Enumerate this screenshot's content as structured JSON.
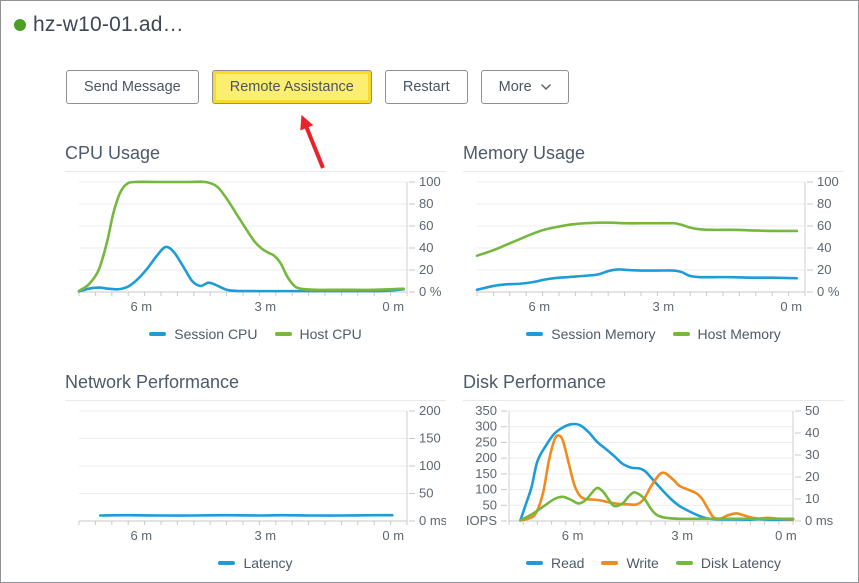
{
  "window": {
    "title": "hz-w10-01.ad…"
  },
  "status": {
    "color": "#4c9e27"
  },
  "toolbar": {
    "send_message_label": "Send Message",
    "remote_assistance_label": "Remote Assistance",
    "restart_label": "Restart",
    "more_label": "More",
    "highlight_color": "#fbee71",
    "annotation_arrow_color": "#e8232a"
  },
  "chart_data": [
    {
      "type": "line",
      "title": "CPU Usage",
      "x_ticks": [
        {
          "label": "6 m",
          "pos": 0.19
        },
        {
          "label": "3 m",
          "pos": 0.568
        },
        {
          "label": "0 m",
          "pos": 0.958
        }
      ],
      "y_axis_right": {
        "max": 100,
        "tick_labels": [
          "100",
          "80",
          "60",
          "40",
          "20",
          "0 %"
        ]
      },
      "series": [
        {
          "name": "Session CPU",
          "color": "#1e9cd7",
          "axis": "right",
          "points": [
            [
              0,
              0.5
            ],
            [
              0.03,
              3
            ],
            [
              0.06,
              4
            ],
            [
              0.09,
              3
            ],
            [
              0.12,
              2.5
            ],
            [
              0.15,
              5
            ],
            [
              0.18,
              12
            ],
            [
              0.21,
              22
            ],
            [
              0.24,
              34
            ],
            [
              0.265,
              41
            ],
            [
              0.29,
              36
            ],
            [
              0.32,
              22
            ],
            [
              0.345,
              10
            ],
            [
              0.37,
              5.5
            ],
            [
              0.395,
              8.5
            ],
            [
              0.42,
              6
            ],
            [
              0.45,
              2
            ],
            [
              0.48,
              1
            ],
            [
              0.55,
              0.8
            ],
            [
              0.65,
              0.8
            ],
            [
              0.75,
              0.8
            ],
            [
              0.85,
              0.8
            ],
            [
              0.93,
              1
            ],
            [
              0.99,
              2.5
            ]
          ]
        },
        {
          "name": "Host CPU",
          "color": "#76b73e",
          "axis": "right",
          "points": [
            [
              0,
              1
            ],
            [
              0.03,
              7
            ],
            [
              0.06,
              20
            ],
            [
              0.085,
              45
            ],
            [
              0.105,
              72
            ],
            [
              0.125,
              90
            ],
            [
              0.145,
              98
            ],
            [
              0.17,
              100
            ],
            [
              0.25,
              100
            ],
            [
              0.33,
              100
            ],
            [
              0.385,
              100
            ],
            [
              0.42,
              96
            ],
            [
              0.45,
              85
            ],
            [
              0.48,
              71
            ],
            [
              0.51,
              57
            ],
            [
              0.535,
              46
            ],
            [
              0.555,
              40
            ],
            [
              0.575,
              36
            ],
            [
              0.595,
              33
            ],
            [
              0.615,
              26
            ],
            [
              0.635,
              14
            ],
            [
              0.655,
              6
            ],
            [
              0.675,
              3
            ],
            [
              0.72,
              2
            ],
            [
              0.8,
              2
            ],
            [
              0.9,
              2
            ],
            [
              0.99,
              3
            ]
          ]
        }
      ]
    },
    {
      "type": "line",
      "title": "Memory Usage",
      "x_ticks": [
        {
          "label": "6 m",
          "pos": 0.19
        },
        {
          "label": "3 m",
          "pos": 0.568
        },
        {
          "label": "0 m",
          "pos": 0.958
        }
      ],
      "y_axis_right": {
        "max": 100,
        "tick_labels": [
          "100",
          "80",
          "60",
          "40",
          "20",
          "0 %"
        ]
      },
      "series": [
        {
          "name": "Session Memory",
          "color": "#1e9cd7",
          "axis": "right",
          "points": [
            [
              0,
              2
            ],
            [
              0.05,
              5.5
            ],
            [
              0.09,
              7
            ],
            [
              0.13,
              7.5
            ],
            [
              0.17,
              9
            ],
            [
              0.21,
              11.5
            ],
            [
              0.25,
              13
            ],
            [
              0.3,
              14
            ],
            [
              0.34,
              15
            ],
            [
              0.37,
              16
            ],
            [
              0.4,
              19
            ],
            [
              0.43,
              20.5
            ],
            [
              0.46,
              20
            ],
            [
              0.5,
              19.5
            ],
            [
              0.55,
              19.5
            ],
            [
              0.6,
              19.5
            ],
            [
              0.625,
              18
            ],
            [
              0.65,
              14.5
            ],
            [
              0.68,
              13.5
            ],
            [
              0.72,
              13.5
            ],
            [
              0.78,
              13.5
            ],
            [
              0.84,
              13
            ],
            [
              0.9,
              13
            ],
            [
              0.975,
              12.5
            ]
          ]
        },
        {
          "name": "Host Memory",
          "color": "#76b73e",
          "axis": "right",
          "points": [
            [
              0,
              33
            ],
            [
              0.05,
              38
            ],
            [
              0.09,
              43
            ],
            [
              0.13,
              48
            ],
            [
              0.17,
              53
            ],
            [
              0.21,
              57
            ],
            [
              0.25,
              59.5
            ],
            [
              0.29,
              61.5
            ],
            [
              0.33,
              62.5
            ],
            [
              0.37,
              63
            ],
            [
              0.41,
              63
            ],
            [
              0.45,
              62.5
            ],
            [
              0.5,
              62.5
            ],
            [
              0.55,
              62.5
            ],
            [
              0.6,
              62.5
            ],
            [
              0.625,
              61
            ],
            [
              0.65,
              58.5
            ],
            [
              0.68,
              57
            ],
            [
              0.72,
              56.5
            ],
            [
              0.78,
              56.5
            ],
            [
              0.84,
              56
            ],
            [
              0.9,
              55.5
            ],
            [
              0.975,
              55.5
            ]
          ]
        }
      ]
    },
    {
      "type": "line",
      "title": "Network Performance",
      "x_ticks": [
        {
          "label": "6 m",
          "pos": 0.19
        },
        {
          "label": "3 m",
          "pos": 0.568
        },
        {
          "label": "0 m",
          "pos": 0.958
        }
      ],
      "y_axis_right": {
        "max": 200,
        "tick_labels": [
          "200",
          "150",
          "100",
          "50",
          "0 ms"
        ]
      },
      "series": [
        {
          "name": "Latency",
          "color": "#1e9cd7",
          "axis": "right",
          "points": [
            [
              0.065,
              10
            ],
            [
              0.15,
              10.5
            ],
            [
              0.25,
              10
            ],
            [
              0.35,
              10
            ],
            [
              0.45,
              10.5
            ],
            [
              0.55,
              10
            ],
            [
              0.62,
              10.5
            ],
            [
              0.7,
              10
            ],
            [
              0.8,
              10
            ],
            [
              0.9,
              10.5
            ],
            [
              0.955,
              10.5
            ]
          ]
        }
      ]
    },
    {
      "type": "line",
      "title": "Disk Performance",
      "x_ticks": [
        {
          "label": "6 m",
          "pos": 0.224
        },
        {
          "label": "3 m",
          "pos": 0.61
        },
        {
          "label": "0 m",
          "pos": 0.975
        }
      ],
      "y_axis_left": {
        "max": 350,
        "tick_labels": [
          "350",
          "300",
          "250",
          "200",
          "150",
          "100",
          "50",
          "0 IOPS"
        ]
      },
      "y_axis_right": {
        "max": 50,
        "tick_labels": [
          "50",
          "40",
          "30",
          "20",
          "10",
          "0 ms"
        ]
      },
      "series": [
        {
          "name": "Read",
          "color": "#1e9cd7",
          "axis": "left",
          "points": [
            [
              0.04,
              2
            ],
            [
              0.06,
              55
            ],
            [
              0.08,
              110
            ],
            [
              0.1,
              190
            ],
            [
              0.13,
              240
            ],
            [
              0.16,
              278
            ],
            [
              0.19,
              298
            ],
            [
              0.22,
              308
            ],
            [
              0.25,
              305
            ],
            [
              0.28,
              283
            ],
            [
              0.31,
              252
            ],
            [
              0.34,
              230
            ],
            [
              0.37,
              207
            ],
            [
              0.4,
              182
            ],
            [
              0.43,
              170
            ],
            [
              0.46,
              167
            ],
            [
              0.48,
              158
            ],
            [
              0.51,
              128
            ],
            [
              0.54,
              98
            ],
            [
              0.57,
              70
            ],
            [
              0.6,
              48
            ],
            [
              0.63,
              33
            ],
            [
              0.66,
              20
            ],
            [
              0.69,
              10
            ],
            [
              0.72,
              6
            ],
            [
              0.76,
              5
            ],
            [
              0.8,
              5
            ],
            [
              0.84,
              4
            ],
            [
              0.88,
              6
            ],
            [
              0.92,
              4
            ],
            [
              0.96,
              4
            ],
            [
              1,
              4
            ]
          ]
        },
        {
          "name": "Write",
          "color": "#f08b1d",
          "axis": "left",
          "points": [
            [
              0.04,
              2
            ],
            [
              0.07,
              8
            ],
            [
              0.095,
              25
            ],
            [
              0.12,
              90
            ],
            [
              0.14,
              190
            ],
            [
              0.16,
              258
            ],
            [
              0.175,
              272
            ],
            [
              0.19,
              255
            ],
            [
              0.21,
              185
            ],
            [
              0.23,
              115
            ],
            [
              0.25,
              80
            ],
            [
              0.27,
              70
            ],
            [
              0.3,
              68
            ],
            [
              0.33,
              64
            ],
            [
              0.36,
              58
            ],
            [
              0.39,
              54
            ],
            [
              0.42,
              53
            ],
            [
              0.45,
              53
            ],
            [
              0.475,
              70
            ],
            [
              0.5,
              110
            ],
            [
              0.53,
              148
            ],
            [
              0.55,
              152
            ],
            [
              0.58,
              130
            ],
            [
              0.6,
              112
            ],
            [
              0.63,
              100
            ],
            [
              0.66,
              88
            ],
            [
              0.68,
              70
            ],
            [
              0.7,
              40
            ],
            [
              0.72,
              12
            ],
            [
              0.745,
              8
            ],
            [
              0.77,
              18
            ],
            [
              0.8,
              24
            ],
            [
              0.82,
              20
            ],
            [
              0.85,
              12
            ],
            [
              0.88,
              8
            ],
            [
              0.91,
              10
            ],
            [
              0.94,
              8
            ],
            [
              0.97,
              6
            ],
            [
              1,
              5
            ]
          ]
        },
        {
          "name": "Disk Latency",
          "color": "#76b73e",
          "axis": "right",
          "points": [
            [
              0.04,
              0.3
            ],
            [
              0.08,
              3
            ],
            [
              0.12,
              6.5
            ],
            [
              0.16,
              10
            ],
            [
              0.19,
              11
            ],
            [
              0.22,
              9.5
            ],
            [
              0.245,
              8
            ],
            [
              0.27,
              9.5
            ],
            [
              0.29,
              12.5
            ],
            [
              0.31,
              15
            ],
            [
              0.33,
              13.5
            ],
            [
              0.35,
              10
            ],
            [
              0.37,
              6.8
            ],
            [
              0.4,
              8
            ],
            [
              0.42,
              11
            ],
            [
              0.44,
              13
            ],
            [
              0.46,
              12
            ],
            [
              0.48,
              9.5
            ],
            [
              0.5,
              5.5
            ],
            [
              0.52,
              2.8
            ],
            [
              0.55,
              1.5
            ],
            [
              0.6,
              1
            ],
            [
              0.7,
              1
            ],
            [
              0.8,
              1
            ],
            [
              0.9,
              1
            ],
            [
              1,
              1
            ]
          ]
        }
      ]
    }
  ]
}
